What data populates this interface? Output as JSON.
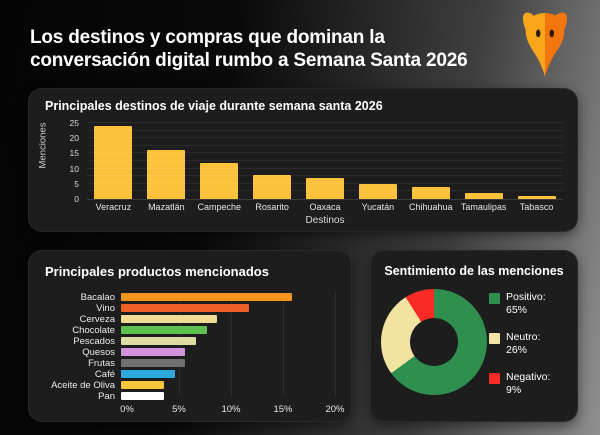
{
  "header": {
    "title_line1": "Los destinos y compras que dominan la",
    "title_line2": "conversación digital rumbo a Semana Santa 2026",
    "logo_icon": "fox-logo"
  },
  "colors": {
    "background_left": "#050505",
    "background_right": "#8f8f8f",
    "panel": "#1d1d1d",
    "accent_gold": "#FCC23C",
    "fox_left": "#F9A61A",
    "fox_right": "#F2750D"
  },
  "chart_data": [
    {
      "type": "bar",
      "title": "Principales destinos de viaje durante semana santa 2026",
      "xlabel": "Destinos",
      "ylabel": "Menciones",
      "ylim": [
        0,
        25
      ],
      "yticks": [
        0,
        5,
        10,
        15,
        20,
        25
      ],
      "grid": true,
      "categories": [
        "Veracruz",
        "Mazatlán",
        "Campeche",
        "Rosarito",
        "Oaxaca",
        "Yucatán",
        "Chihuahua",
        "Tamaulipas",
        "Tabasco"
      ],
      "values": [
        24,
        16,
        12,
        8,
        7,
        5,
        4,
        2,
        1
      ],
      "bar_color": "#FCC23C"
    },
    {
      "type": "bar",
      "orientation": "horizontal",
      "title": "Principales productos mencionados",
      "xlim": [
        0,
        20
      ],
      "xticks": [
        "0%",
        "5%",
        "10%",
        "15%",
        "20%"
      ],
      "xtick_positions": [
        0,
        25,
        50,
        75,
        100
      ],
      "grid": true,
      "categories": [
        "Bacalao",
        "Vino",
        "Cerveza",
        "Chocolate",
        "Pescados",
        "Quesos",
        "Frutas",
        "Café",
        "Aceite de Oliva",
        "Pan"
      ],
      "values": [
        16,
        12,
        9,
        8,
        7,
        6,
        6,
        5,
        4,
        4
      ],
      "bar_colors": [
        "#F7941E",
        "#EE5F26",
        "#F1DC94",
        "#5EC14D",
        "#DEDBA4",
        "#D393DC",
        "#707070",
        "#2BA9DE",
        "#F8C53D",
        "#FFFFFF"
      ]
    },
    {
      "type": "pie",
      "donut": true,
      "title": "Sentimiento de las menciones",
      "legend_position": "right",
      "slices": [
        {
          "label": "Positivo:",
          "value": 65,
          "value_label": "65%",
          "color": "#2F8F4E"
        },
        {
          "label": "Neutro:",
          "value": 26,
          "value_label": "26%",
          "color": "#F2E3A2"
        },
        {
          "label": "Negativo:",
          "value": 9,
          "value_label": "9%",
          "color": "#FA2B25"
        }
      ]
    }
  ]
}
